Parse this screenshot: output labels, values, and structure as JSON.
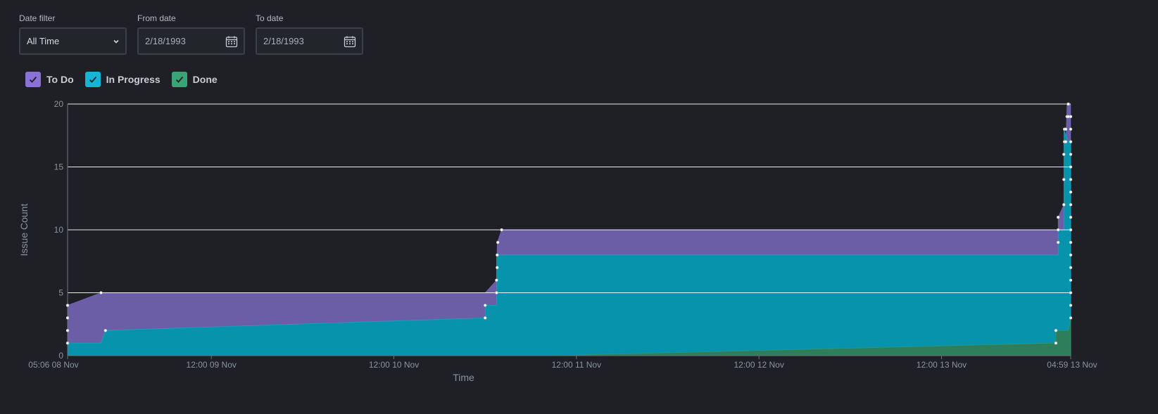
{
  "filters": {
    "date_filter": {
      "label": "Date filter",
      "value": "All Time"
    },
    "from_date": {
      "label": "From date",
      "value": "2/18/1993"
    },
    "to_date": {
      "label": "To date",
      "value": "2/18/1993"
    }
  },
  "legend": [
    {
      "label": "To Do",
      "color": "#8a72d6",
      "checked": true
    },
    {
      "label": "In Progress",
      "color": "#13b6d5",
      "checked": true
    },
    {
      "label": "Done",
      "color": "#3aa476",
      "checked": true
    }
  ],
  "colors": {
    "background": "#1e2025",
    "todo_fill": "#6b5ea6",
    "inprogress_fill": "#0893ad",
    "done_fill": "#2e7d5b",
    "grid": "#ffffff",
    "point": "#ffffff"
  },
  "chart_data": {
    "type": "area",
    "stacked": true,
    "xlabel": "Time",
    "ylabel": "Issue Count",
    "ylim": [
      0,
      20
    ],
    "y_ticks": [
      0,
      5,
      10,
      15,
      20
    ],
    "xlim": [
      "2023-11-08T05:06",
      "2023-11-13T16:59"
    ],
    "x_ticks": [
      {
        "t": "2023-11-08T05:06",
        "label": "05:06 08 Nov"
      },
      {
        "t": "2023-11-09T00:00",
        "label": "12:00 09 Nov"
      },
      {
        "t": "2023-11-10T00:00",
        "label": "12:00 10 Nov"
      },
      {
        "t": "2023-11-11T00:00",
        "label": "12:00 11 Nov"
      },
      {
        "t": "2023-11-12T00:00",
        "label": "12:00 12 Nov"
      },
      {
        "t": "2023-11-13T00:00",
        "label": "12:00 13 Nov"
      },
      {
        "t": "2023-11-13T16:59",
        "label": "04:59 13 Nov"
      }
    ],
    "series": [
      {
        "name": "Done",
        "points": [
          [
            "2023-11-08T05:06",
            0
          ],
          [
            "2023-11-10T21:00",
            0
          ],
          [
            "2023-11-13T15:02",
            1
          ],
          [
            "2023-11-13T15:02",
            2
          ],
          [
            "2023-11-13T16:40",
            2
          ],
          [
            "2023-11-13T16:59",
            3
          ]
        ]
      },
      {
        "name": "In Progress",
        "points": [
          [
            "2023-11-08T05:06",
            1
          ],
          [
            "2023-11-08T09:30",
            1
          ],
          [
            "2023-11-08T10:05",
            2
          ],
          [
            "2023-11-10T12:00",
            3
          ],
          [
            "2023-11-10T12:00",
            4
          ],
          [
            "2023-11-10T13:30",
            4
          ],
          [
            "2023-11-10T13:30",
            8
          ],
          [
            "2023-11-13T15:20",
            8
          ],
          [
            "2023-11-13T15:20",
            10
          ],
          [
            "2023-11-13T16:05",
            10
          ],
          [
            "2023-11-13T16:05",
            18
          ],
          [
            "2023-11-13T16:40",
            17
          ],
          [
            "2023-11-13T16:59",
            17
          ]
        ]
      },
      {
        "name": "To Do",
        "points": [
          [
            "2023-11-08T05:06",
            4
          ],
          [
            "2023-11-08T09:30",
            5
          ],
          [
            "2023-11-10T12:00",
            5
          ],
          [
            "2023-11-10T13:30",
            6
          ],
          [
            "2023-11-10T13:35",
            9
          ],
          [
            "2023-11-10T14:10",
            10
          ],
          [
            "2023-11-13T15:20",
            10
          ],
          [
            "2023-11-13T15:20",
            11
          ],
          [
            "2023-11-13T16:05",
            12
          ],
          [
            "2023-11-13T16:30",
            20
          ],
          [
            "2023-11-13T16:59",
            20
          ]
        ]
      }
    ],
    "total_points": [
      [
        "2023-11-08T05:06",
        1
      ],
      [
        "2023-11-08T05:06",
        2
      ],
      [
        "2023-11-08T05:06",
        3
      ],
      [
        "2023-11-08T05:06",
        4
      ],
      [
        "2023-11-08T09:30",
        5
      ],
      [
        "2023-11-08T10:05",
        2
      ],
      [
        "2023-11-10T12:00",
        3
      ],
      [
        "2023-11-10T12:00",
        4
      ],
      [
        "2023-11-10T13:30",
        5
      ],
      [
        "2023-11-10T13:30",
        6
      ],
      [
        "2023-11-10T13:35",
        7
      ],
      [
        "2023-11-10T13:35",
        8
      ],
      [
        "2023-11-10T13:40",
        9
      ],
      [
        "2023-11-10T14:10",
        10
      ],
      [
        "2023-11-13T15:02",
        1
      ],
      [
        "2023-11-13T15:02",
        2
      ],
      [
        "2023-11-13T15:20",
        9
      ],
      [
        "2023-11-13T15:20",
        10
      ],
      [
        "2023-11-13T15:20",
        11
      ],
      [
        "2023-11-13T16:05",
        12
      ],
      [
        "2023-11-13T16:05",
        14
      ],
      [
        "2023-11-13T16:05",
        16
      ],
      [
        "2023-11-13T16:10",
        17
      ],
      [
        "2023-11-13T16:10",
        18
      ],
      [
        "2023-11-13T16:20",
        17
      ],
      [
        "2023-11-13T16:20",
        18
      ],
      [
        "2023-11-13T16:30",
        19
      ],
      [
        "2023-11-13T16:40",
        19
      ],
      [
        "2023-11-13T16:40",
        20
      ],
      [
        "2023-11-13T16:59",
        19
      ],
      [
        "2023-11-13T16:59",
        18
      ],
      [
        "2023-11-13T16:59",
        17
      ],
      [
        "2023-11-13T16:59",
        16
      ],
      [
        "2023-11-13T16:59",
        15
      ],
      [
        "2023-11-13T16:59",
        14
      ],
      [
        "2023-11-13T16:59",
        13
      ],
      [
        "2023-11-13T16:59",
        12
      ],
      [
        "2023-11-13T16:59",
        11
      ],
      [
        "2023-11-13T16:59",
        10
      ],
      [
        "2023-11-13T16:59",
        9
      ],
      [
        "2023-11-13T16:59",
        8
      ],
      [
        "2023-11-13T16:59",
        7
      ],
      [
        "2023-11-13T16:59",
        6
      ],
      [
        "2023-11-13T16:59",
        5
      ],
      [
        "2023-11-13T16:59",
        4
      ],
      [
        "2023-11-13T16:59",
        3
      ]
    ]
  }
}
